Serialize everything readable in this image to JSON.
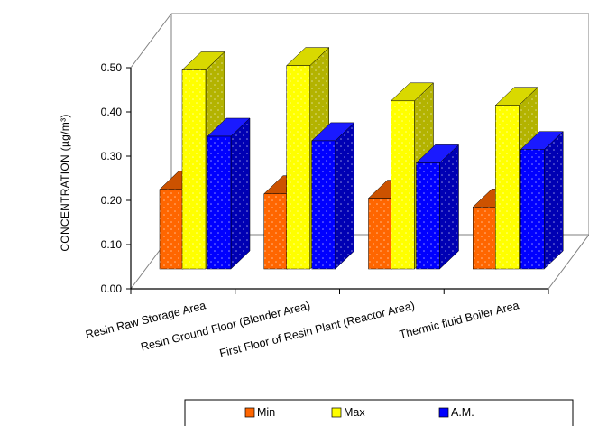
{
  "chart_data": {
    "type": "bar",
    "style": "3d-clustered-column",
    "categories": [
      "Resin Raw Storage Area",
      "Resin Ground Floor (Blender Area)",
      "First Floor of Resin Plant (Reactor Area)",
      "Thermic fluid Boiler Area"
    ],
    "series": [
      {
        "name": "Min",
        "values": [
          0.18,
          0.17,
          0.16,
          0.14
        ]
      },
      {
        "name": "Max",
        "values": [
          0.45,
          0.46,
          0.38,
          0.37
        ]
      },
      {
        "name": "A.M.",
        "values": [
          0.3,
          0.29,
          0.24,
          0.27
        ]
      }
    ],
    "ylabel": "CONCENTRATION  (µg/m³)",
    "ylim": [
      0,
      0.5
    ],
    "yticks": [
      "0.00",
      "0.10",
      "0.20",
      "0.30",
      "0.40",
      "0.50"
    ],
    "legend_position": "bottom",
    "grid": false,
    "colors": {
      "Min": {
        "front": "#ff6600",
        "side": "#b34700",
        "top": "#cc5200"
      },
      "Max": {
        "front": "#ffff00",
        "side": "#b3b300",
        "top": "#d9d900"
      },
      "A.M.": {
        "front": "#0000ff",
        "side": "#0000b3",
        "top": "#1a1aff"
      },
      "frame": "#7f7f7f"
    }
  }
}
